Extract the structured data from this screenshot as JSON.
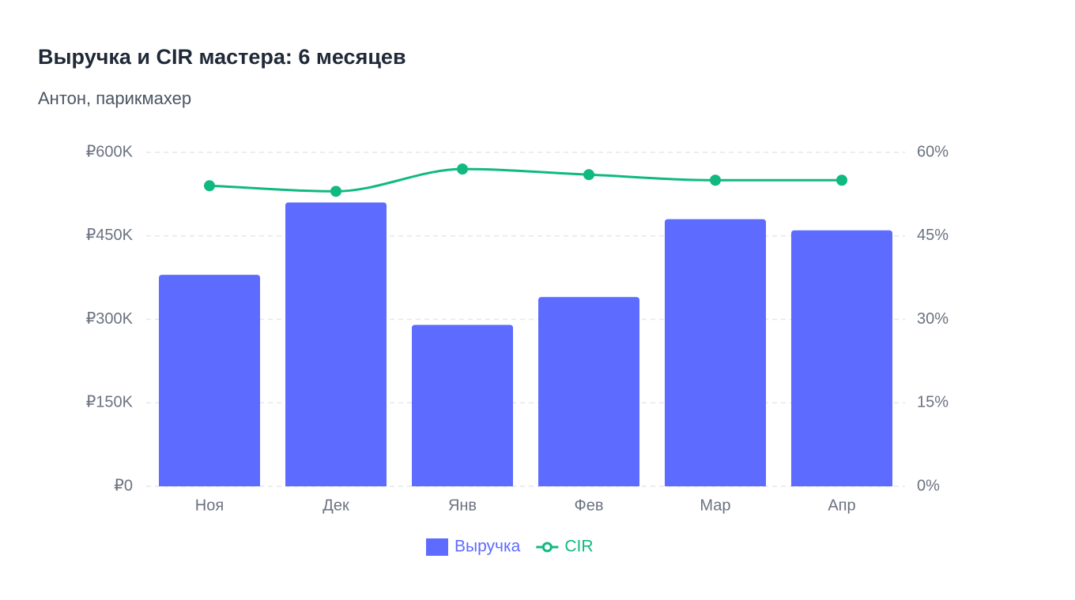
{
  "chart_data": {
    "type": "bar",
    "title": "Выручка и CIR мастера: 6 месяцев",
    "subtitle": "Антон, парикмахер",
    "categories": [
      "Ноя",
      "Дек",
      "Янв",
      "Фев",
      "Мар",
      "Апр"
    ],
    "series": [
      {
        "name": "Выручка",
        "type": "bar",
        "color": "#5d6bff",
        "values": [
          380000,
          510000,
          290000,
          340000,
          480000,
          460000
        ]
      },
      {
        "name": "CIR",
        "type": "line",
        "axis": "y2",
        "color": "#10b981",
        "values": [
          54,
          53,
          57,
          56,
          55,
          55
        ]
      }
    ],
    "ylim": [
      0,
      600000
    ],
    "yticks": [
      {
        "value": 0,
        "label": "₽0"
      },
      {
        "value": 150000,
        "label": "₽150K"
      },
      {
        "value": 300000,
        "label": "₽300K"
      },
      {
        "value": 450000,
        "label": "₽450K"
      },
      {
        "value": 600000,
        "label": "₽600K"
      }
    ],
    "y2lim": [
      0,
      60
    ],
    "y2ticks": [
      {
        "value": 0,
        "label": "0%"
      },
      {
        "value": 15,
        "label": "15%"
      },
      {
        "value": 30,
        "label": "30%"
      },
      {
        "value": 45,
        "label": "45%"
      },
      {
        "value": 60,
        "label": "60%"
      }
    ],
    "grid": true,
    "legend": "bottom"
  }
}
